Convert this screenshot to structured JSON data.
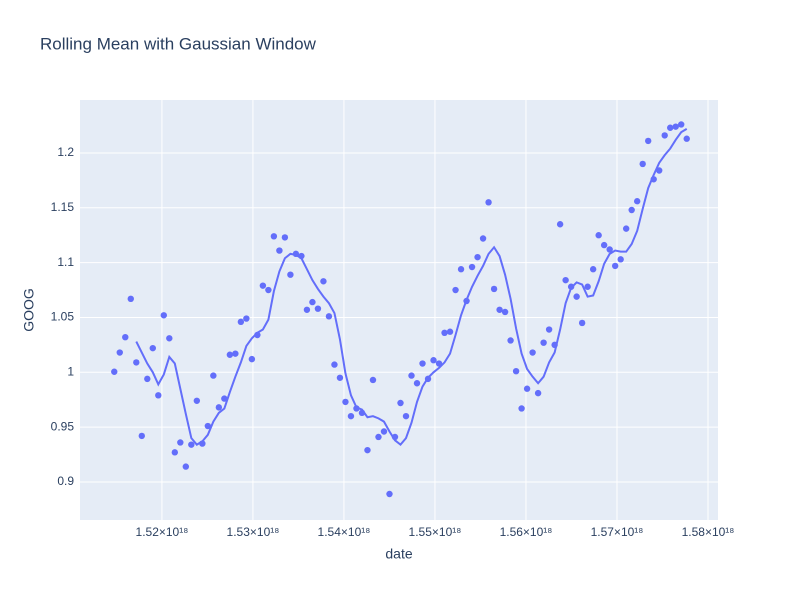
{
  "chart_data": {
    "type": "scatter",
    "title": "Rolling Mean with Gaussian Window",
    "x_label": "date",
    "y_label": "GOOG",
    "x": [
      1.5147648e+18,
      1.5153696e+18,
      1.5159744e+18,
      1.5165792e+18,
      1.517184e+18,
      1.5177888e+18,
      1.5183936e+18,
      1.5189984e+18,
      1.5196032e+18,
      1.520208e+18,
      1.5208128e+18,
      1.5214176e+18,
      1.5220224e+18,
      1.5226272e+18,
      1.523232e+18,
      1.5238368e+18,
      1.5244416e+18,
      1.5250464e+18,
      1.5256512e+18,
      1.526256e+18,
      1.5268608e+18,
      1.5274656e+18,
      1.5280704e+18,
      1.5286752e+18,
      1.52928e+18,
      1.5298848e+18,
      1.5304896e+18,
      1.5310944e+18,
      1.5316992e+18,
      1.532304e+18,
      1.5329088e+18,
      1.5335136e+18,
      1.5341184e+18,
      1.5347232e+18,
      1.535328e+18,
      1.5359328e+18,
      1.5365376e+18,
      1.5371424e+18,
      1.5377472e+18,
      1.538352e+18,
      1.5389568e+18,
      1.5395616e+18,
      1.5401664e+18,
      1.5407712e+18,
      1.541376e+18,
      1.5419808e+18,
      1.5425856e+18,
      1.5431904e+18,
      1.5437952e+18,
      1.5444e+18,
      1.5450048e+18,
      1.5456096e+18,
      1.5462144e+18,
      1.5468192e+18,
      1.547424e+18,
      1.5480288e+18,
      1.5486336e+18,
      1.5492384e+18,
      1.5498432e+18,
      1.550448e+18,
      1.5510528e+18,
      1.5516576e+18,
      1.5522624e+18,
      1.5528672e+18,
      1.553472e+18,
      1.5540768e+18,
      1.5546816e+18,
      1.5552864e+18,
      1.5558912e+18,
      1.556496e+18,
      1.5571008e+18,
      1.5577056e+18,
      1.5583104e+18,
      1.5589152e+18,
      1.55952e+18,
      1.5601248e+18,
      1.5607296e+18,
      1.5613344e+18,
      1.5619392e+18,
      1.562544e+18,
      1.5631488e+18,
      1.5637536e+18,
      1.5643584e+18,
      1.5649632e+18,
      1.565568e+18,
      1.5661728e+18,
      1.5667776e+18,
      1.5673824e+18,
      1.5679872e+18,
      1.568592e+18,
      1.5691968e+18,
      1.5698016e+18,
      1.5704064e+18,
      1.5710112e+18,
      1.571616e+18,
      1.5722208e+18,
      1.5728256e+18,
      1.5734304e+18,
      1.5740352e+18,
      1.57464e+18,
      1.5752448e+18,
      1.5758496e+18,
      1.5764544e+18,
      1.5770592e+18,
      1.577664e+18
    ],
    "series": [
      {
        "mode": "markers",
        "color": "#636efa",
        "values": [
          1.0005,
          1.018,
          1.032,
          1.067,
          1.009,
          0.942,
          0.994,
          1.022,
          0.979,
          1.052,
          1.031,
          0.927,
          0.936,
          0.914,
          0.934,
          0.974,
          0.935,
          0.951,
          0.997,
          0.968,
          0.976,
          1.016,
          1.017,
          1.046,
          1.049,
          1.012,
          1.034,
          1.079,
          1.075,
          1.124,
          1.111,
          1.123,
          1.089,
          1.108,
          1.106,
          1.057,
          1.064,
          1.058,
          1.083,
          1.051,
          1.007,
          0.995,
          0.973,
          0.96,
          0.967,
          0.963,
          0.929,
          0.993,
          0.941,
          0.946,
          0.889,
          0.941,
          0.972,
          0.96,
          0.997,
          0.99,
          1.008,
          0.994,
          1.011,
          1.008,
          1.036,
          1.037,
          1.075,
          1.094,
          1.065,
          1.096,
          1.105,
          1.122,
          1.155,
          1.076,
          1.057,
          1.055,
          1.029,
          1.001,
          0.967,
          0.985,
          1.018,
          0.981,
          1.027,
          1.039,
          1.025,
          1.135,
          1.084,
          1.078,
          1.069,
          1.045,
          1.078,
          1.094,
          1.125,
          1.116,
          1.112,
          1.097,
          1.103,
          1.131,
          1.148,
          1.156,
          1.19,
          1.211,
          1.176,
          1.184,
          1.216,
          1.223,
          1.224,
          1.226,
          1.213
        ]
      },
      {
        "mode": "lines",
        "color": "#636efa",
        "values": [
          null,
          null,
          null,
          null,
          1.028,
          1.018,
          1.008,
          1.0,
          0.989,
          0.998,
          1.014,
          1.008,
          0.985,
          0.962,
          0.94,
          0.934,
          0.937,
          0.943,
          0.955,
          0.963,
          0.967,
          0.982,
          0.996,
          1.009,
          1.024,
          1.031,
          1.036,
          1.039,
          1.048,
          1.074,
          1.092,
          1.104,
          1.108,
          1.107,
          1.104,
          1.094,
          1.084,
          1.076,
          1.069,
          1.063,
          1.054,
          1.03,
          0.999,
          0.979,
          0.968,
          0.966,
          0.959,
          0.96,
          0.958,
          0.955,
          0.946,
          0.938,
          0.934,
          0.94,
          0.954,
          0.973,
          0.987,
          0.995,
          1.0,
          1.004,
          1.009,
          1.017,
          1.034,
          1.052,
          1.066,
          1.078,
          1.088,
          1.097,
          1.108,
          1.114,
          1.106,
          1.089,
          1.067,
          1.04,
          1.017,
          1.003,
          0.996,
          0.99,
          0.996,
          1.009,
          1.018,
          1.039,
          1.063,
          1.077,
          1.082,
          1.08,
          1.069,
          1.07,
          1.083,
          1.099,
          1.108,
          1.111,
          1.11,
          1.11,
          1.117,
          1.129,
          1.149,
          1.168,
          1.18,
          1.191,
          1.198,
          1.204,
          1.212,
          1.219,
          1.222
        ]
      }
    ],
    "xlim": [
      1.511e+18,
      1.5811e+18
    ],
    "xticks": [
      {
        "value": 1.52e+18,
        "label": "1.52×10¹⁸"
      },
      {
        "value": 1.53e+18,
        "label": "1.53×10¹⁸"
      },
      {
        "value": 1.54e+18,
        "label": "1.54×10¹⁸"
      },
      {
        "value": 1.55e+18,
        "label": "1.55×10¹⁸"
      },
      {
        "value": 1.56e+18,
        "label": "1.56×10¹⁸"
      },
      {
        "value": 1.57e+18,
        "label": "1.57×10¹⁸"
      },
      {
        "value": 1.58e+18,
        "label": "1.58×10¹⁸"
      }
    ],
    "ylim": [
      0.8653,
      1.2483
    ],
    "yticks": [
      0.9,
      0.95,
      1,
      1.05,
      1.1,
      1.15,
      1.2
    ],
    "grid": true
  }
}
